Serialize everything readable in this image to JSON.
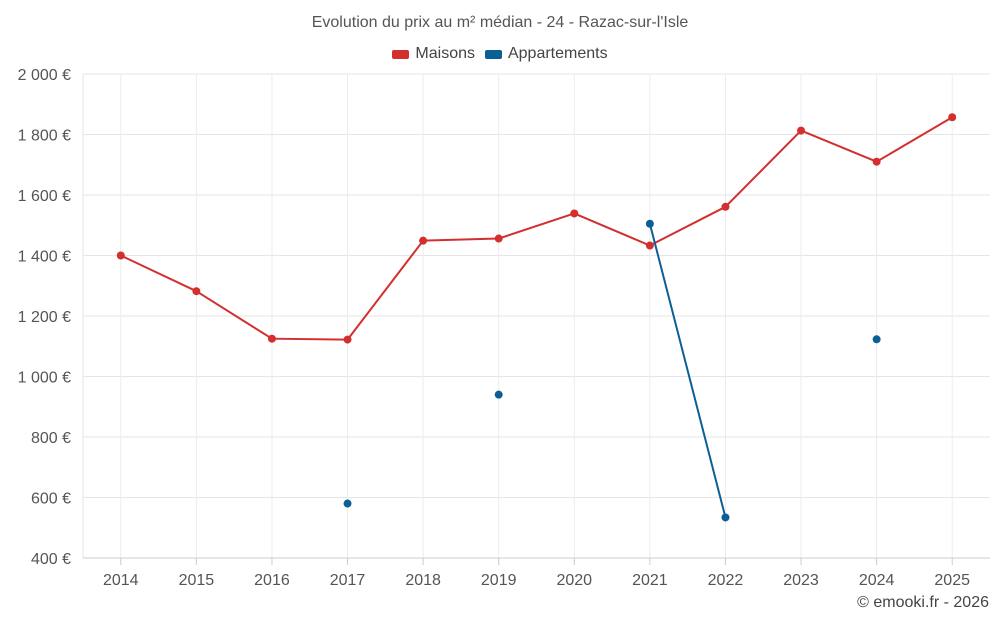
{
  "chart_data": {
    "type": "line",
    "title": "Evolution du prix au m² médian - 24 - Razac-sur-l'Isle",
    "xlabel": "",
    "ylabel": "",
    "categories": [
      "2014",
      "2015",
      "2016",
      "2017",
      "2018",
      "2019",
      "2020",
      "2021",
      "2022",
      "2023",
      "2024",
      "2025"
    ],
    "ylim": [
      400,
      2000
    ],
    "yticks": [
      400,
      600,
      800,
      1000,
      1200,
      1400,
      1600,
      1800,
      2000
    ],
    "ytick_labels": [
      "400 €",
      "600 €",
      "800 €",
      "1 000 €",
      "1 200 €",
      "1 400 €",
      "1 600 €",
      "1 800 €",
      "2 000 €"
    ],
    "grid": true,
    "legend_position": "top-center",
    "series": [
      {
        "name": "Maisons",
        "color": "#d32f2f",
        "values": [
          1400,
          1282,
          1125,
          1122,
          1449,
          1456,
          1539,
          1433,
          1561,
          1813,
          1710,
          1857
        ]
      },
      {
        "name": "Appartements",
        "color": "#0b5f95",
        "values": [
          null,
          null,
          null,
          580,
          null,
          940,
          null,
          1505,
          534,
          null,
          1123,
          null
        ]
      }
    ]
  },
  "credit": "© emooki.fr - 2026"
}
